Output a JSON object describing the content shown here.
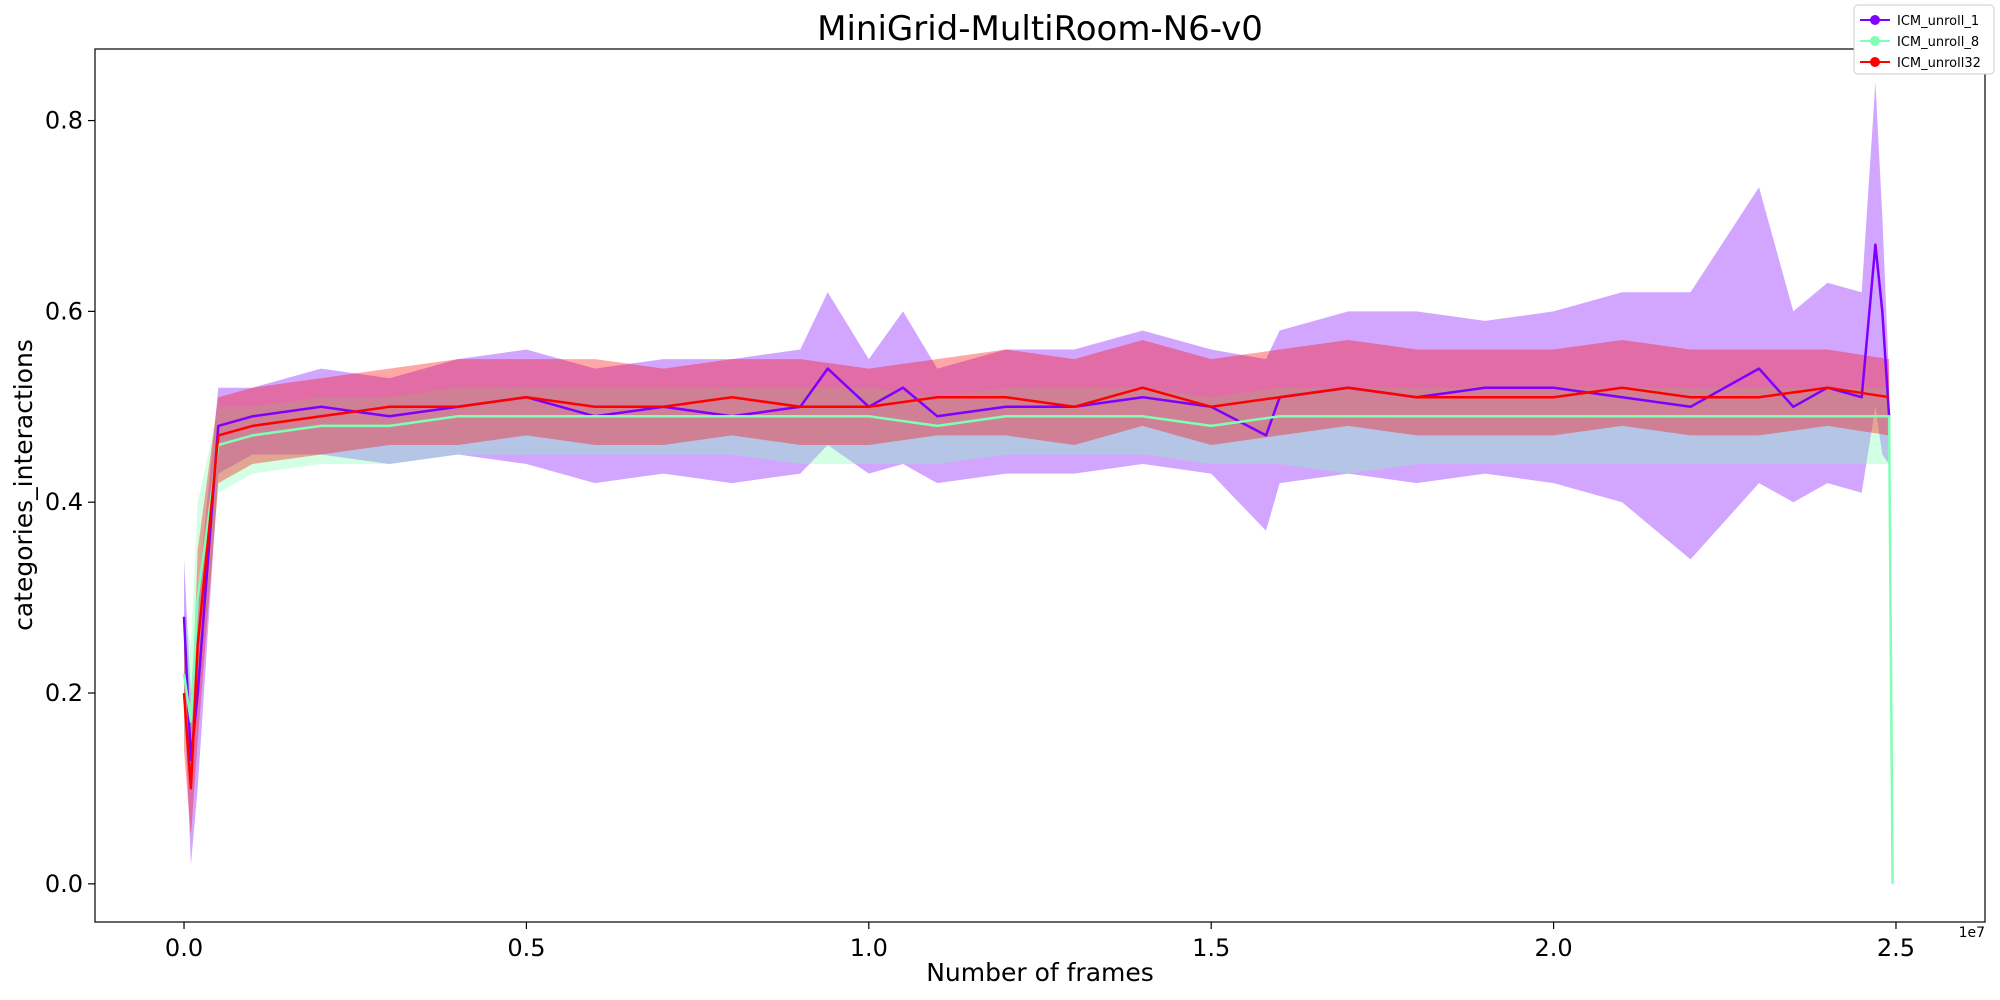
{
  "chart_data": {
    "type": "line",
    "title": "MiniGrid-MultiRoom-N6-v0",
    "xlabel": "Number of frames",
    "ylabel": "categories_interactions",
    "x_offset_label": "1e7",
    "xlim": [
      -0.13,
      2.63
    ],
    "ylim": [
      -0.04,
      0.875
    ],
    "xticks": [
      0.0,
      0.5,
      1.0,
      1.5,
      2.0,
      2.5
    ],
    "xtick_labels": [
      "0.0",
      "0.5",
      "1.0",
      "1.5",
      "2.0",
      "2.5"
    ],
    "yticks": [
      0.0,
      0.2,
      0.4,
      0.6,
      0.8
    ],
    "ytick_labels": [
      "0.0",
      "0.2",
      "0.4",
      "0.6",
      "0.8"
    ],
    "grid": false,
    "legend_position": "top-right",
    "series": [
      {
        "name": "ICM_unroll_1",
        "color": "#7f00ff",
        "x": [
          0.0,
          0.01,
          0.02,
          0.05,
          0.1,
          0.2,
          0.3,
          0.4,
          0.5,
          0.6,
          0.7,
          0.8,
          0.9,
          0.94,
          1.0,
          1.05,
          1.1,
          1.2,
          1.3,
          1.4,
          1.5,
          1.58,
          1.6,
          1.7,
          1.8,
          1.9,
          2.0,
          2.1,
          2.2,
          2.3,
          2.35,
          2.4,
          2.45,
          2.47,
          2.48,
          2.49
        ],
        "y": [
          0.28,
          0.13,
          0.2,
          0.48,
          0.49,
          0.5,
          0.49,
          0.5,
          0.51,
          0.49,
          0.5,
          0.49,
          0.5,
          0.54,
          0.5,
          0.52,
          0.49,
          0.5,
          0.5,
          0.51,
          0.5,
          0.47,
          0.51,
          0.52,
          0.51,
          0.52,
          0.52,
          0.51,
          0.5,
          0.54,
          0.5,
          0.52,
          0.51,
          0.67,
          0.6,
          0.49
        ],
        "band_upper": [
          0.34,
          0.2,
          0.3,
          0.52,
          0.52,
          0.54,
          0.53,
          0.55,
          0.56,
          0.54,
          0.55,
          0.55,
          0.56,
          0.62,
          0.55,
          0.6,
          0.54,
          0.56,
          0.56,
          0.58,
          0.56,
          0.55,
          0.58,
          0.6,
          0.6,
          0.59,
          0.6,
          0.62,
          0.62,
          0.73,
          0.6,
          0.63,
          0.62,
          0.84,
          0.7,
          0.53
        ],
        "band_lower": [
          0.2,
          0.02,
          0.1,
          0.43,
          0.45,
          0.45,
          0.44,
          0.45,
          0.44,
          0.42,
          0.43,
          0.42,
          0.43,
          0.46,
          0.43,
          0.44,
          0.42,
          0.43,
          0.43,
          0.44,
          0.43,
          0.37,
          0.42,
          0.43,
          0.42,
          0.43,
          0.42,
          0.4,
          0.34,
          0.42,
          0.4,
          0.42,
          0.41,
          0.5,
          0.45,
          0.44
        ]
      },
      {
        "name": "ICM_unroll_8",
        "color": "#80ffb4",
        "x": [
          0.0,
          0.01,
          0.02,
          0.05,
          0.1,
          0.2,
          0.3,
          0.4,
          0.5,
          0.6,
          0.7,
          0.8,
          0.9,
          1.0,
          1.1,
          1.2,
          1.3,
          1.4,
          1.5,
          1.6,
          1.7,
          1.8,
          1.9,
          2.0,
          2.1,
          2.2,
          2.3,
          2.4,
          2.48,
          2.49,
          2.495
        ],
        "y": [
          0.22,
          0.17,
          0.3,
          0.46,
          0.47,
          0.48,
          0.48,
          0.49,
          0.49,
          0.49,
          0.49,
          0.49,
          0.49,
          0.49,
          0.48,
          0.49,
          0.49,
          0.49,
          0.48,
          0.49,
          0.49,
          0.49,
          0.49,
          0.49,
          0.49,
          0.49,
          0.49,
          0.49,
          0.49,
          0.49,
          0.0
        ],
        "band_upper": [
          0.28,
          0.25,
          0.4,
          0.5,
          0.5,
          0.51,
          0.51,
          0.52,
          0.52,
          0.52,
          0.52,
          0.52,
          0.52,
          0.52,
          0.51,
          0.52,
          0.52,
          0.52,
          0.51,
          0.52,
          0.52,
          0.52,
          0.52,
          0.52,
          0.52,
          0.52,
          0.52,
          0.52,
          0.52,
          0.52,
          0.0
        ],
        "band_lower": [
          0.16,
          0.1,
          0.2,
          0.41,
          0.43,
          0.44,
          0.44,
          0.45,
          0.45,
          0.45,
          0.45,
          0.45,
          0.44,
          0.44,
          0.44,
          0.45,
          0.45,
          0.45,
          0.44,
          0.44,
          0.43,
          0.44,
          0.44,
          0.44,
          0.44,
          0.44,
          0.44,
          0.44,
          0.44,
          0.44,
          0.0
        ]
      },
      {
        "name": "ICM_unroll32",
        "color": "#ff0000",
        "x": [
          0.0,
          0.01,
          0.02,
          0.05,
          0.1,
          0.2,
          0.3,
          0.4,
          0.5,
          0.6,
          0.7,
          0.8,
          0.9,
          1.0,
          1.1,
          1.2,
          1.3,
          1.4,
          1.5,
          1.6,
          1.7,
          1.8,
          1.9,
          2.0,
          2.1,
          2.2,
          2.3,
          2.4,
          2.49
        ],
        "y": [
          0.2,
          0.1,
          0.25,
          0.47,
          0.48,
          0.49,
          0.5,
          0.5,
          0.51,
          0.5,
          0.5,
          0.51,
          0.5,
          0.5,
          0.51,
          0.51,
          0.5,
          0.52,
          0.5,
          0.51,
          0.52,
          0.51,
          0.51,
          0.51,
          0.52,
          0.51,
          0.51,
          0.52,
          0.51
        ],
        "band_upper": [
          0.26,
          0.16,
          0.35,
          0.51,
          0.52,
          0.53,
          0.54,
          0.55,
          0.55,
          0.55,
          0.54,
          0.55,
          0.55,
          0.54,
          0.55,
          0.56,
          0.55,
          0.57,
          0.55,
          0.56,
          0.57,
          0.56,
          0.56,
          0.56,
          0.57,
          0.56,
          0.56,
          0.56,
          0.55
        ],
        "band_lower": [
          0.14,
          0.05,
          0.15,
          0.42,
          0.44,
          0.45,
          0.46,
          0.46,
          0.47,
          0.46,
          0.46,
          0.47,
          0.46,
          0.46,
          0.47,
          0.47,
          0.46,
          0.48,
          0.46,
          0.47,
          0.48,
          0.47,
          0.47,
          0.47,
          0.48,
          0.47,
          0.47,
          0.48,
          0.47
        ]
      }
    ]
  }
}
